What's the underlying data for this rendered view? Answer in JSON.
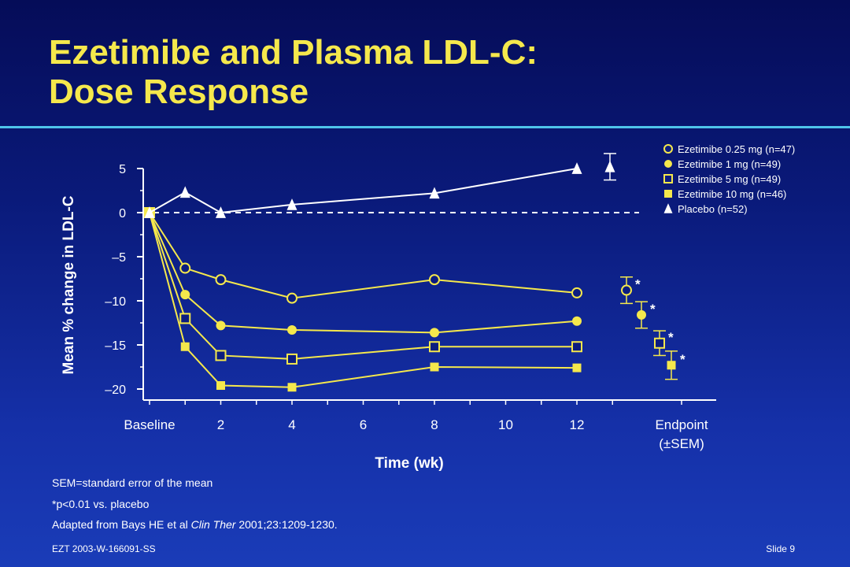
{
  "slide": {
    "title_line1": "Ezetimibe and Plasma LDL-C:",
    "title_line2": "Dose Response",
    "note_sem": "SEM=standard error of the mean",
    "note_p": "*p<0.01 vs. placebo",
    "note_ref_prefix": "Adapted from Bays HE et al ",
    "note_ref_journal": "Clin Ther",
    "note_ref_suffix": " 2001;23:1209-1230.",
    "footer_code": "EZT 2003-W-166091-SS",
    "slide_number": "Slide 9"
  },
  "colors": {
    "title": "#f5e84c",
    "series_line": "#f5e84c",
    "placebo": "#ffffff",
    "rule": "#4fc4ea"
  },
  "chart_data": {
    "type": "line",
    "title": "",
    "xlabel": "Time (wk)",
    "ylabel": "Mean % change in LDL-C",
    "ylim": [
      -20,
      5
    ],
    "yticks": [
      5,
      0,
      -5,
      -10,
      -15,
      -20
    ],
    "ytick_labels": [
      "5",
      "0",
      "–5",
      "–10",
      "–15",
      "–20"
    ],
    "xticks": [
      0,
      2,
      4,
      6,
      8,
      10,
      12
    ],
    "xtick_labels": [
      "Baseline",
      "2",
      "4",
      "6",
      "8",
      "10",
      "12"
    ],
    "endpoint_label": [
      "Endpoint",
      "(±SEM)"
    ],
    "reference_line_y": 0,
    "legend_position": "top-right",
    "series": [
      {
        "name": "Ezetimibe 0.25 mg (n=47)",
        "marker": "open-circle",
        "x": [
          0,
          1,
          2,
          4,
          8,
          12
        ],
        "y": [
          0,
          -6.3,
          -7.6,
          -9.7,
          -7.6,
          -9.1
        ],
        "endpoint": {
          "y": -8.8,
          "sem": 1.5,
          "sig": true
        }
      },
      {
        "name": "Ezetimibe 1 mg (n=49)",
        "marker": "filled-circle",
        "x": [
          0,
          1,
          2,
          4,
          8,
          12
        ],
        "y": [
          0,
          -9.3,
          -12.8,
          -13.3,
          -13.6,
          -12.3
        ],
        "endpoint": {
          "y": -11.6,
          "sem": 1.5,
          "sig": true
        }
      },
      {
        "name": "Ezetimibe 5 mg (n=49)",
        "marker": "open-square",
        "x": [
          0,
          1,
          2,
          4,
          8,
          12
        ],
        "y": [
          0,
          -12.0,
          -16.2,
          -16.6,
          -15.2,
          -15.2
        ],
        "endpoint": {
          "y": -14.8,
          "sem": 1.4,
          "sig": true
        }
      },
      {
        "name": "Ezetimibe 10 mg (n=46)",
        "marker": "filled-square",
        "x": [
          0,
          1,
          2,
          4,
          8,
          12
        ],
        "y": [
          0,
          -15.2,
          -19.6,
          -19.8,
          -17.5,
          -17.6
        ],
        "endpoint": {
          "y": -17.3,
          "sem": 1.6,
          "sig": true
        }
      },
      {
        "name": "Placebo (n=52)",
        "marker": "filled-triangle",
        "x": [
          0,
          1,
          2,
          4,
          8,
          12
        ],
        "y": [
          0,
          2.3,
          0,
          0.9,
          2.2,
          5.0
        ],
        "endpoint": {
          "y": 5.2,
          "sem": 1.5,
          "sig": false
        }
      }
    ]
  }
}
